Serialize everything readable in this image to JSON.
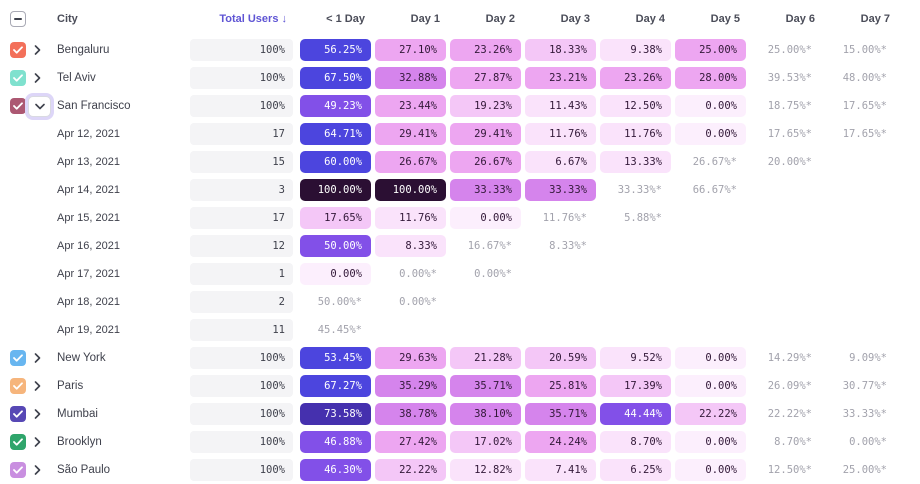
{
  "header": {
    "select_all_state": "indeterminate",
    "columns": [
      "City",
      "Total Users ↓",
      "< 1 Day",
      "Day 1",
      "Day 2",
      "Day 3",
      "Day 4",
      "Day 5",
      "Day 6",
      "Day 7"
    ]
  },
  "colors": {
    "accent_header": "#5F55D4",
    "bar_bg": "#F4F4F6",
    "star_text": "#A2A2AC",
    "focus_ring": "#DDD6F8"
  },
  "color_scale": [
    {
      "min": 85,
      "bg": "#2B0F33",
      "fg": "#FFFFFF"
    },
    {
      "min": 70,
      "bg": "#4530AE",
      "fg": "#FFFFFF"
    },
    {
      "min": 52,
      "bg": "#4C45DE",
      "fg": "#FFFFFF"
    },
    {
      "min": 42,
      "bg": "#8250E8",
      "fg": "#FFFFFF"
    },
    {
      "min": 31,
      "bg": "#D584EC",
      "fg": "#321838"
    },
    {
      "min": 22.6,
      "bg": "#EDA6F1",
      "fg": "#321838"
    },
    {
      "min": 16,
      "bg": "#F4C7F7",
      "fg": "#321838"
    },
    {
      "min": 5,
      "bg": "#FAE3FB",
      "fg": "#321838"
    },
    {
      "min": -1,
      "bg": "#FCEFFD",
      "fg": "#321838"
    }
  ],
  "rows": [
    {
      "type": "city",
      "label": "Bengaluru",
      "checkbox_color": "#F3705A",
      "expanded": false,
      "total": "100%",
      "cells": [
        "56.25%",
        "27.10%",
        "23.26%",
        "18.33%",
        "9.38%",
        "25.00%",
        "25.00%*",
        "15.00%*"
      ]
    },
    {
      "type": "city",
      "label": "Tel Aviv",
      "checkbox_color": "#7FE1CE",
      "expanded": false,
      "total": "100%",
      "cells": [
        "67.50%",
        "32.88%",
        "27.87%",
        "23.21%",
        "23.26%",
        "28.00%",
        "39.53%*",
        "48.00%*"
      ]
    },
    {
      "type": "city",
      "label": "San Francisco",
      "checkbox_color": "#AC5872",
      "expanded": true,
      "total": "100%",
      "cells": [
        "49.23%",
        "23.44%",
        "19.23%",
        "11.43%",
        "12.50%",
        "0.00%",
        "18.75%*",
        "17.65%*"
      ]
    },
    {
      "type": "date",
      "label": "Apr 12, 2021",
      "total": "17",
      "cells": [
        "64.71%",
        "29.41%",
        "29.41%",
        "11.76%",
        "11.76%",
        "0.00%",
        "17.65%*",
        "17.65%*"
      ]
    },
    {
      "type": "date",
      "label": "Apr 13, 2021",
      "total": "15",
      "cells": [
        "60.00%",
        "26.67%",
        "26.67%",
        "6.67%",
        "13.33%",
        "26.67%*",
        "20.00%*",
        null
      ]
    },
    {
      "type": "date",
      "label": "Apr 14, 2021",
      "total": "3",
      "cells": [
        "100.00%",
        "100.00%",
        "33.33%",
        "33.33%",
        "33.33%*",
        "66.67%*",
        null,
        null
      ]
    },
    {
      "type": "date",
      "label": "Apr 15, 2021",
      "total": "17",
      "cells": [
        "17.65%",
        "11.76%",
        "0.00%",
        "11.76%*",
        "5.88%*",
        null,
        null,
        null
      ]
    },
    {
      "type": "date",
      "label": "Apr 16, 2021",
      "total": "12",
      "cells": [
        "50.00%",
        "8.33%",
        "16.67%*",
        "8.33%*",
        null,
        null,
        null,
        null
      ]
    },
    {
      "type": "date",
      "label": "Apr 17, 2021",
      "total": "1",
      "cells": [
        "0.00%",
        "0.00%*",
        "0.00%*",
        null,
        null,
        null,
        null,
        null
      ]
    },
    {
      "type": "date",
      "label": "Apr 18, 2021",
      "total": "2",
      "cells": [
        "50.00%*",
        "0.00%*",
        null,
        null,
        null,
        null,
        null,
        null
      ]
    },
    {
      "type": "date",
      "label": "Apr 19, 2021",
      "total": "11",
      "cells": [
        "45.45%*",
        null,
        null,
        null,
        null,
        null,
        null,
        null
      ]
    },
    {
      "type": "city",
      "label": "New York",
      "checkbox_color": "#68B6F0",
      "expanded": false,
      "total": "100%",
      "cells": [
        "53.45%",
        "29.63%",
        "21.28%",
        "20.59%",
        "9.52%",
        "0.00%",
        "14.29%*",
        "9.09%*"
      ]
    },
    {
      "type": "city",
      "label": "Paris",
      "checkbox_color": "#F6B57C",
      "expanded": false,
      "total": "100%",
      "cells": [
        "67.27%",
        "35.29%",
        "35.71%",
        "25.81%",
        "17.39%",
        "0.00%",
        "26.09%*",
        "30.77%*"
      ]
    },
    {
      "type": "city",
      "label": "Mumbai",
      "checkbox_color": "#5748B5",
      "expanded": false,
      "total": "100%",
      "cells": [
        "73.58%",
        "38.78%",
        "38.10%",
        "35.71%",
        "44.44%",
        "22.22%",
        "22.22%*",
        "33.33%*"
      ]
    },
    {
      "type": "city",
      "label": "Brooklyn",
      "checkbox_color": "#2FA56B",
      "expanded": false,
      "total": "100%",
      "cells": [
        "46.88%",
        "27.42%",
        "17.02%",
        "24.24%",
        "8.70%",
        "0.00%",
        "8.70%*",
        "0.00%*"
      ]
    },
    {
      "type": "city",
      "label": "São Paulo",
      "checkbox_color": "#C98FE0",
      "expanded": false,
      "total": "100%",
      "cells": [
        "46.30%",
        "22.22%",
        "12.82%",
        "7.41%",
        "6.25%",
        "0.00%",
        "12.50%*",
        "25.00%*"
      ]
    }
  ]
}
